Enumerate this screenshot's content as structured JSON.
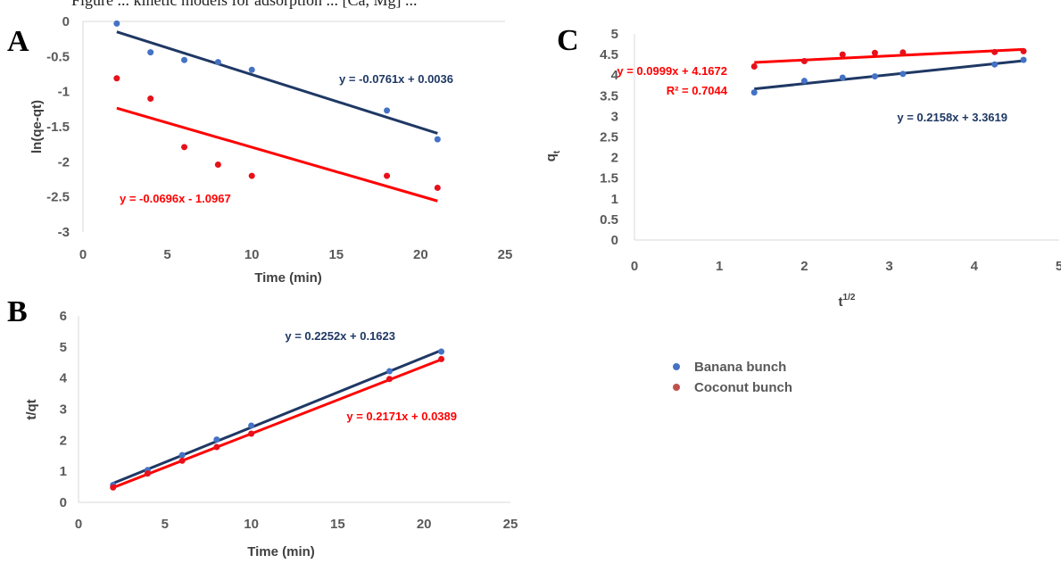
{
  "caption_fragment": "Figure ... kinetic models for adsorption ... [Ca, Mg] ...",
  "colors": {
    "banana_marker": "#4472c4",
    "banana_line": "#1f3864",
    "coconut_marker": "#e8101a",
    "coconut_line": "#ff0000",
    "axis": "#d9d9d9",
    "tick_text": "#595959"
  },
  "legend": [
    {
      "label": "Banana bunch",
      "color": "#4472c4"
    },
    {
      "label": "Coconut bunch",
      "color": "#c0504d"
    }
  ],
  "chart_data": [
    {
      "panel": "A",
      "type": "scatter",
      "xlabel": "Time (min)",
      "ylabel": "ln(qe-qt)",
      "xlim": [
        0,
        25
      ],
      "ylim": [
        -3,
        0
      ],
      "xticks": [
        "0",
        "5",
        "10",
        "15",
        "20",
        "25"
      ],
      "yticks": [
        "0",
        "-0.5",
        "-1",
        "-1.5",
        "-2",
        "-2.5",
        "-3"
      ],
      "series": [
        {
          "name": "Banana bunch",
          "x": [
            2,
            4,
            6,
            8,
            10,
            18,
            21
          ],
          "y": [
            -0.03,
            -0.44,
            -0.55,
            -0.58,
            -0.69,
            -1.27,
            -1.68
          ],
          "equation": "y = -0.0761x + 0.0036",
          "trend": {
            "slope": -0.0761,
            "intercept": 0.0036,
            "x": [
              2,
              21
            ]
          }
        },
        {
          "name": "Coconut bunch",
          "x": [
            2,
            4,
            6,
            8,
            10,
            18,
            21
          ],
          "y": [
            -0.81,
            -1.1,
            -1.79,
            -2.04,
            -2.2,
            -2.2,
            -2.37
          ],
          "equation": "y = -0.0696x - 1.0967",
          "trend": {
            "slope": -0.0696,
            "intercept": -1.0967,
            "x": [
              2,
              21
            ]
          }
        }
      ]
    },
    {
      "panel": "B",
      "type": "scatter",
      "xlabel": "Time (min)",
      "ylabel": "t/qt",
      "xlim": [
        0,
        25
      ],
      "ylim": [
        0,
        6
      ],
      "xticks": [
        "0",
        "5",
        "10",
        "15",
        "20",
        "25"
      ],
      "yticks": [
        "0",
        "1",
        "2",
        "3",
        "4",
        "5",
        "6"
      ],
      "series": [
        {
          "name": "Banana bunch",
          "x": [
            2,
            4,
            6,
            8,
            10,
            18,
            21
          ],
          "y": [
            0.56,
            1.04,
            1.52,
            2.02,
            2.47,
            4.22,
            4.85
          ],
          "equation": "y = 0.2252x + 0.1623",
          "trend": {
            "slope": 0.2252,
            "intercept": 0.1623,
            "x": [
              2,
              21
            ]
          }
        },
        {
          "name": "Coconut bunch",
          "x": [
            2,
            4,
            6,
            8,
            10,
            18,
            21
          ],
          "y": [
            0.48,
            0.93,
            1.34,
            1.78,
            2.21,
            3.97,
            4.61
          ],
          "equation": "y = 0.2171x + 0.0389",
          "trend": {
            "slope": 0.2171,
            "intercept": 0.0389,
            "x": [
              2,
              21
            ]
          }
        }
      ]
    },
    {
      "panel": "C",
      "type": "scatter",
      "xlabel": "t",
      "xlabel_superscript": "1/2",
      "ylabel": "q",
      "ylabel_subscript": "t",
      "xlim": [
        0,
        5
      ],
      "ylim": [
        0,
        5
      ],
      "xticks": [
        "0",
        "1",
        "2",
        "3",
        "4",
        "5"
      ],
      "yticks": [
        "0",
        "0.5",
        "1",
        "1.5",
        "2",
        "2.5",
        "3",
        "3.5",
        "4",
        "4.5",
        "5"
      ],
      "series": [
        {
          "name": "Banana bunch",
          "x": [
            1.41,
            2.0,
            2.45,
            2.83,
            3.16,
            4.24,
            4.58
          ],
          "y": [
            3.58,
            3.86,
            3.94,
            3.97,
            4.03,
            4.26,
            4.37
          ],
          "equation": "y = 0.2158x + 3.3619",
          "trend": {
            "slope": 0.2158,
            "intercept": 3.3619,
            "x": [
              1.41,
              4.58
            ]
          }
        },
        {
          "name": "Coconut bunch",
          "x": [
            1.41,
            2.0,
            2.45,
            2.83,
            3.16,
            4.24,
            4.58
          ],
          "y": [
            4.21,
            4.34,
            4.5,
            4.54,
            4.55,
            4.56,
            4.58
          ],
          "equation": "y = 0.0999x + 4.1672",
          "r2": "R² = 0.7044",
          "trend": {
            "slope": 0.0999,
            "intercept": 4.1672,
            "x": [
              1.41,
              4.58
            ]
          }
        }
      ]
    }
  ]
}
